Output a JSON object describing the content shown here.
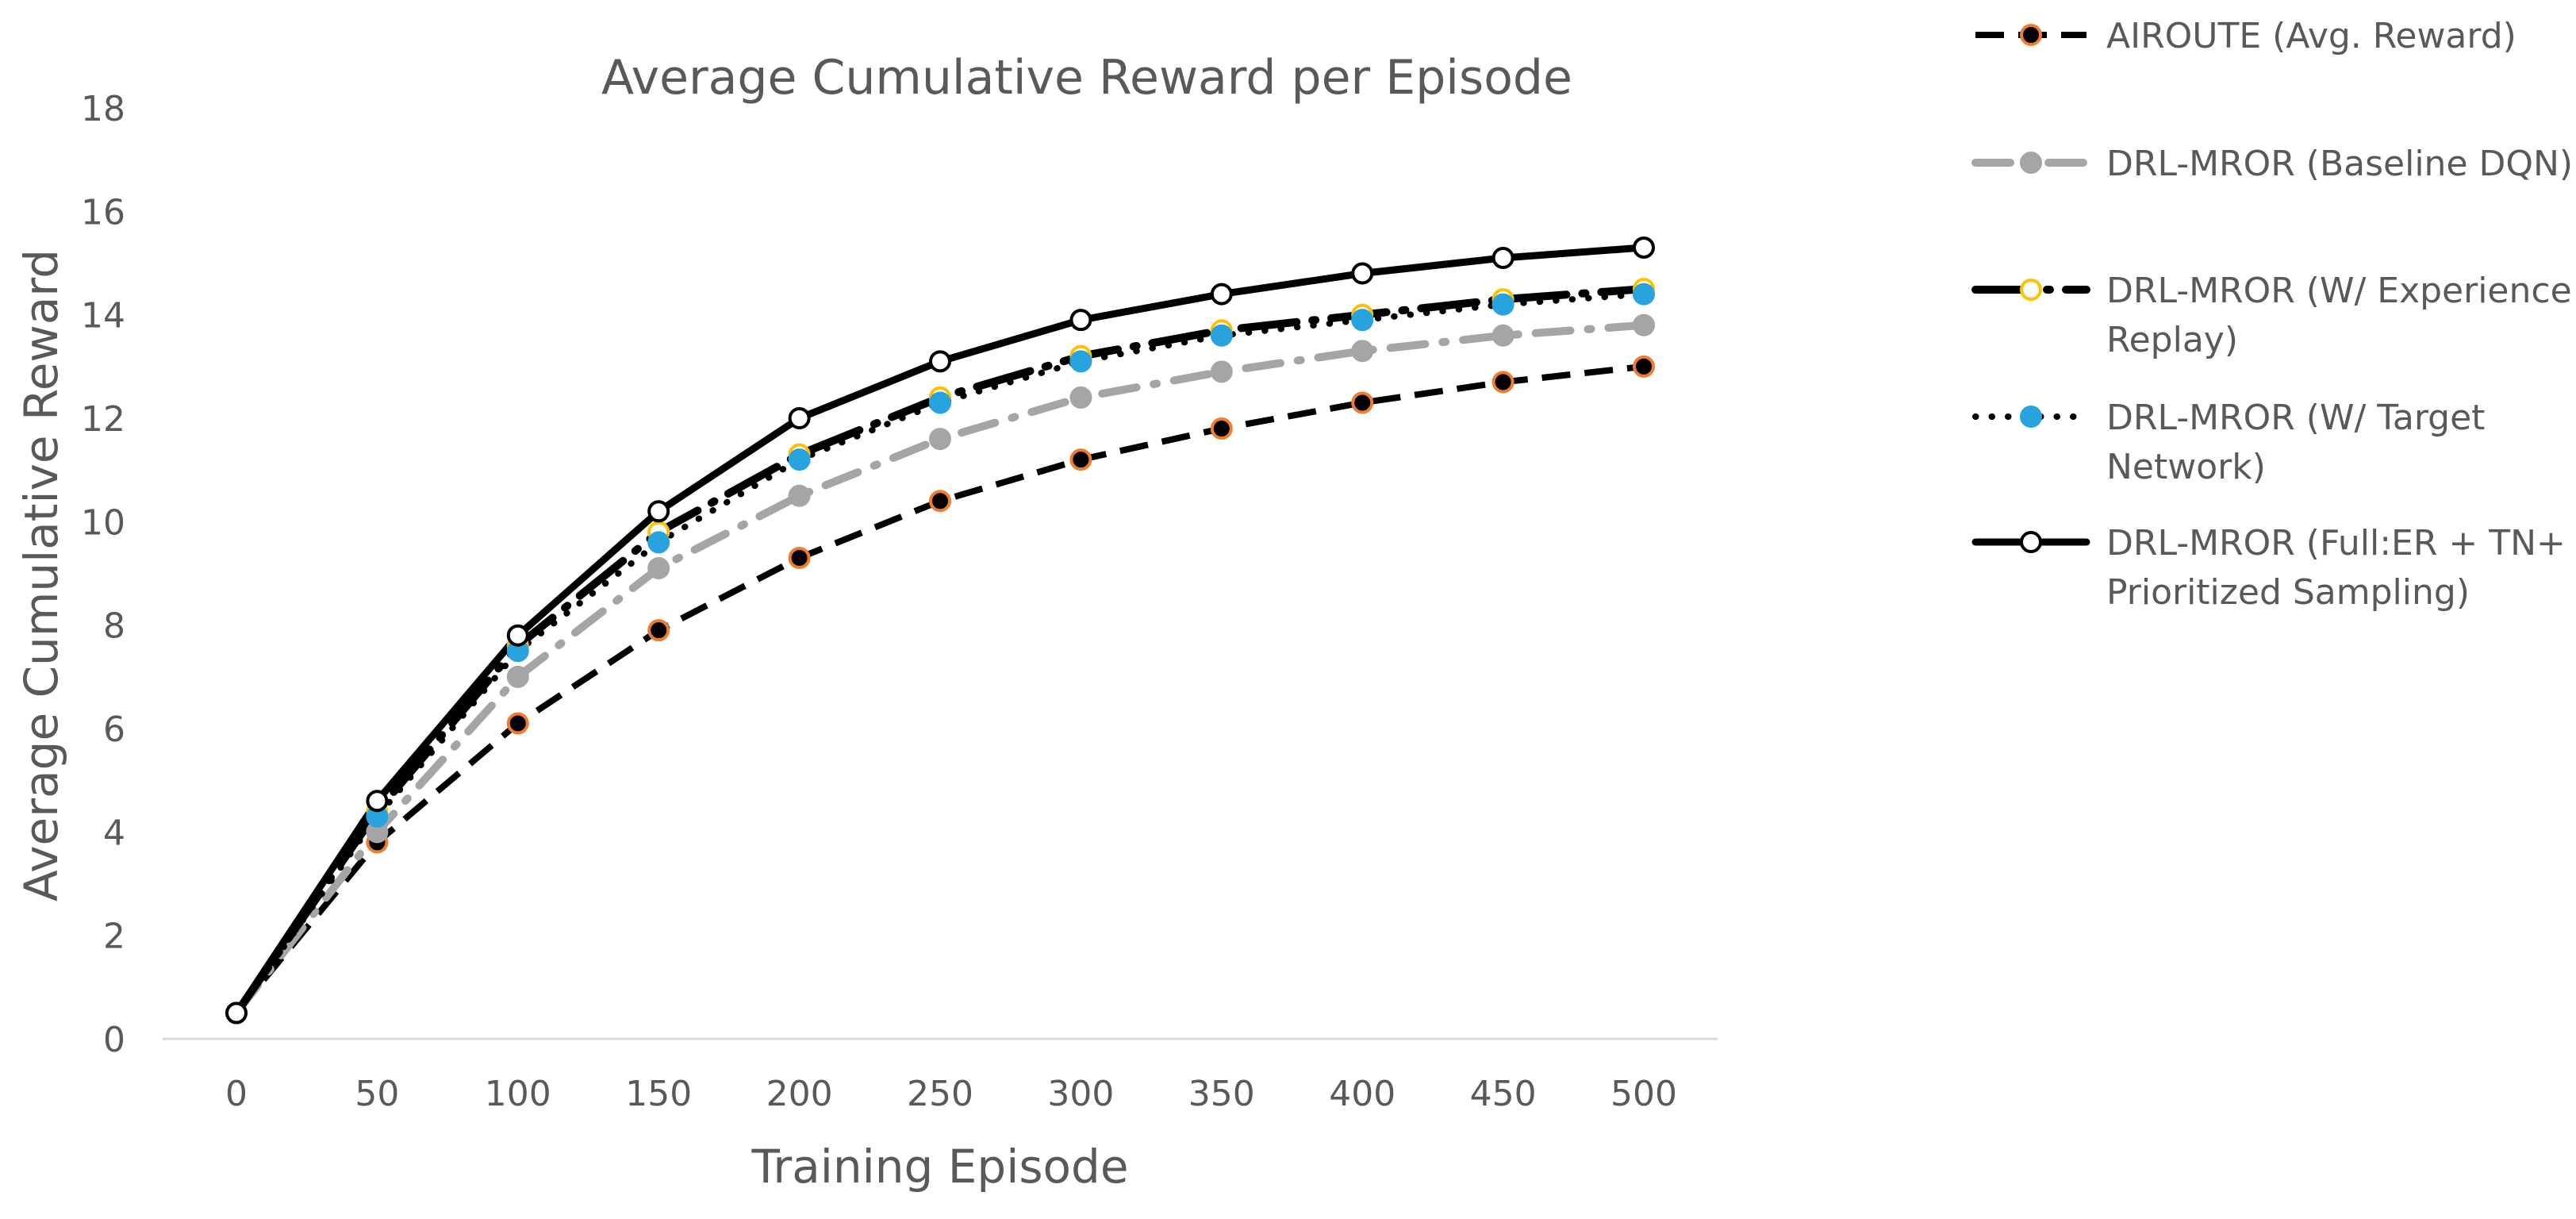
{
  "chart_data": {
    "type": "line",
    "title": "Average Cumulative Reward per Episode",
    "xlabel": "Training Episode",
    "ylabel": "Average Cumulative Reward",
    "x": [
      0,
      50,
      100,
      150,
      200,
      250,
      300,
      350,
      400,
      450,
      500
    ],
    "x_tick_labels": [
      "0",
      "50",
      "100",
      "150",
      "200",
      "250",
      "300",
      "350",
      "400",
      "450",
      "500"
    ],
    "ylim": [
      0,
      18
    ],
    "y_ticks": [
      0,
      2,
      4,
      6,
      8,
      10,
      12,
      14,
      16,
      18
    ],
    "y_tick_labels": [
      "0",
      "2",
      "4",
      "6",
      "8",
      "10",
      "12",
      "14",
      "16",
      "18"
    ],
    "grid": false,
    "legend_position": "right",
    "series": [
      {
        "name": "AIROUTE (Avg. Reward)",
        "legend_lines": [
          "AIROUTE (Avg. Reward)"
        ],
        "values": [
          0.5,
          3.8,
          6.1,
          7.9,
          9.3,
          10.4,
          11.2,
          11.8,
          12.3,
          12.7,
          13.0
        ],
        "line_color": "#000000",
        "line_style": "dashed",
        "marker_fill": "#000000",
        "marker_edge": "#ED7D31"
      },
      {
        "name": "DRL-MROR (Baseline DQN)",
        "legend_lines": [
          "DRL-MROR (Baseline DQN)"
        ],
        "values": [
          0.5,
          4.0,
          7.0,
          9.1,
          10.5,
          11.6,
          12.4,
          12.9,
          13.3,
          13.6,
          13.8
        ],
        "line_color": "#A5A5A5",
        "line_style": "dashdot",
        "marker_fill": "#A5A5A5",
        "marker_edge": "#A5A5A5"
      },
      {
        "name": "DRL-MROR (W/ Experience Replay)",
        "legend_lines": [
          "DRL-MROR (W/ Experience",
          "Replay)"
        ],
        "values": [
          0.5,
          4.4,
          7.6,
          9.8,
          11.3,
          12.4,
          13.2,
          13.7,
          14.0,
          14.3,
          14.5
        ],
        "line_color": "#000000",
        "line_style": "longdash-dot",
        "marker_fill": "#FFFFFF",
        "marker_edge": "#FFC000"
      },
      {
        "name": "DRL-MROR (W/ Target Network)",
        "legend_lines": [
          "DRL-MROR (W/ Target",
          "Network)"
        ],
        "values": [
          0.5,
          4.3,
          7.5,
          9.6,
          11.2,
          12.3,
          13.1,
          13.6,
          13.9,
          14.2,
          14.4
        ],
        "line_color": "#000000",
        "line_style": "dotted",
        "marker_fill": "#29A3DD",
        "marker_edge": "#29A3DD"
      },
      {
        "name": "DRL-MROR (Full:ER + TN+ Prioritized Sampling)",
        "legend_lines": [
          "DRL-MROR (Full:ER + TN+",
          "Prioritized Sampling)"
        ],
        "values": [
          0.5,
          4.6,
          7.8,
          10.2,
          12.0,
          13.1,
          13.9,
          14.4,
          14.8,
          15.1,
          15.3
        ],
        "line_color": "#000000",
        "line_style": "solid",
        "marker_fill": "#FFFFFF",
        "marker_edge": "#000000"
      }
    ]
  }
}
